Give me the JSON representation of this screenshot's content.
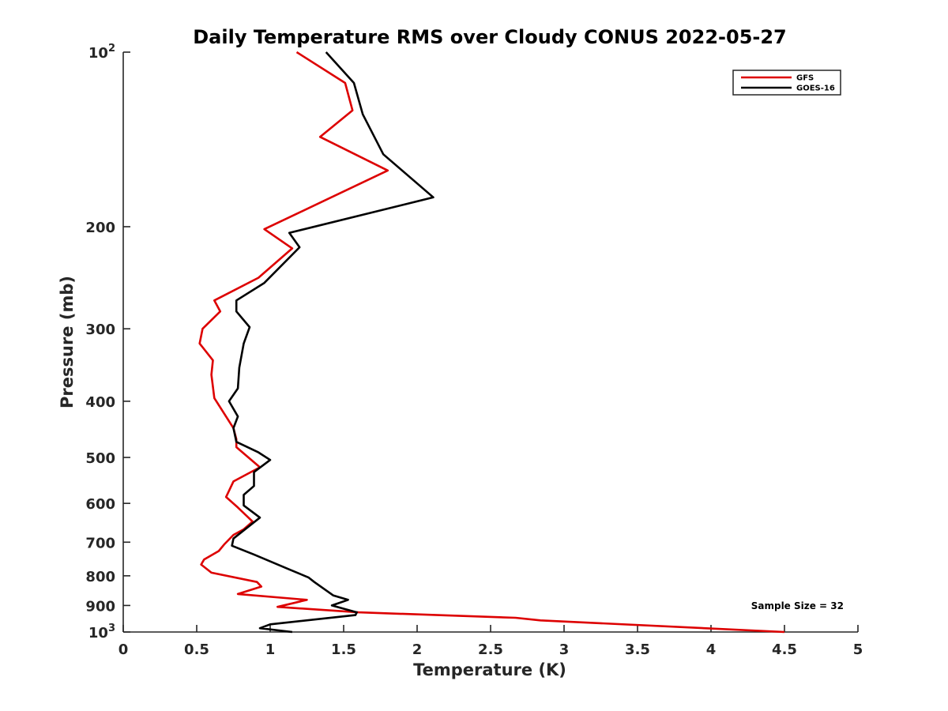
{
  "chart_data": {
    "type": "line",
    "title": "Daily Temperature RMS over Cloudy CONUS 2022-05-27",
    "xlabel": "Temperature (K)",
    "ylabel": "Pressure (mb)",
    "xlim": [
      0,
      5
    ],
    "ylim": [
      100,
      1000
    ],
    "yscale": "log",
    "y_reversed": true,
    "x_ticks": [
      0,
      0.5,
      1,
      1.5,
      2,
      2.5,
      3,
      3.5,
      4,
      4.5,
      5
    ],
    "x_tick_labels": [
      "0",
      "0.5",
      "1",
      "1.5",
      "2",
      "2.5",
      "3",
      "3.5",
      "4",
      "4.5",
      "5"
    ],
    "y_ticks": [
      100,
      200,
      300,
      400,
      500,
      600,
      700,
      800,
      900,
      1000
    ],
    "y_tick_labels": [
      {
        "base": "10",
        "exp": "2"
      },
      {
        "base": "200",
        "exp": ""
      },
      {
        "base": "300",
        "exp": ""
      },
      {
        "base": "400",
        "exp": ""
      },
      {
        "base": "500",
        "exp": ""
      },
      {
        "base": "600",
        "exp": ""
      },
      {
        "base": "700",
        "exp": ""
      },
      {
        "base": "800",
        "exp": ""
      },
      {
        "base": "900",
        "exp": ""
      },
      {
        "base": "10",
        "exp": "3"
      }
    ],
    "grid": false,
    "legend": "top-right",
    "annotation": "Sample Size = 32",
    "series": [
      {
        "name": "GFS",
        "color": "#dd0000",
        "points": [
          [
            1.18,
            100
          ],
          [
            1.51,
            113
          ],
          [
            1.56,
            126
          ],
          [
            1.34,
            140
          ],
          [
            1.8,
            160
          ],
          [
            0.96,
            202
          ],
          [
            1.15,
            218
          ],
          [
            0.92,
            245
          ],
          [
            0.62,
            268
          ],
          [
            0.66,
            280
          ],
          [
            0.54,
            300
          ],
          [
            0.52,
            318
          ],
          [
            0.61,
            340
          ],
          [
            0.6,
            360
          ],
          [
            0.62,
            395
          ],
          [
            0.75,
            445
          ],
          [
            0.77,
            465
          ],
          [
            0.77,
            480
          ],
          [
            0.93,
            520
          ],
          [
            0.75,
            550
          ],
          [
            0.7,
            585
          ],
          [
            0.78,
            610
          ],
          [
            0.88,
            645
          ],
          [
            0.82,
            665
          ],
          [
            0.75,
            680
          ],
          [
            0.69,
            705
          ],
          [
            0.65,
            725
          ],
          [
            0.55,
            750
          ],
          [
            0.53,
            765
          ],
          [
            0.6,
            790
          ],
          [
            0.91,
            820
          ],
          [
            0.94,
            835
          ],
          [
            0.78,
            860
          ],
          [
            1.25,
            880
          ],
          [
            1.05,
            905
          ],
          [
            1.6,
            925
          ],
          [
            2.67,
            945
          ],
          [
            2.84,
            955
          ],
          [
            4.5,
            1000
          ]
        ]
      },
      {
        "name": "GOES-16",
        "color": "#000000",
        "points": [
          [
            1.38,
            100
          ],
          [
            1.57,
            113
          ],
          [
            1.63,
            128
          ],
          [
            1.77,
            150
          ],
          [
            2.11,
            178
          ],
          [
            1.13,
            205
          ],
          [
            1.2,
            217
          ],
          [
            0.96,
            250
          ],
          [
            0.77,
            268
          ],
          [
            0.77,
            280
          ],
          [
            0.86,
            298
          ],
          [
            0.82,
            318
          ],
          [
            0.79,
            350
          ],
          [
            0.78,
            380
          ],
          [
            0.72,
            400
          ],
          [
            0.78,
            425
          ],
          [
            0.75,
            445
          ],
          [
            0.77,
            470
          ],
          [
            0.92,
            490
          ],
          [
            1.0,
            505
          ],
          [
            0.89,
            530
          ],
          [
            0.89,
            560
          ],
          [
            0.82,
            580
          ],
          [
            0.82,
            605
          ],
          [
            0.93,
            635
          ],
          [
            0.75,
            690
          ],
          [
            0.74,
            710
          ],
          [
            0.89,
            735
          ],
          [
            1.13,
            780
          ],
          [
            1.26,
            805
          ],
          [
            1.3,
            820
          ],
          [
            1.43,
            865
          ],
          [
            1.53,
            880
          ],
          [
            1.42,
            900
          ],
          [
            1.59,
            925
          ],
          [
            1.58,
            935
          ],
          [
            1.0,
            970
          ],
          [
            0.93,
            985
          ],
          [
            1.15,
            1000
          ]
        ]
      }
    ]
  }
}
